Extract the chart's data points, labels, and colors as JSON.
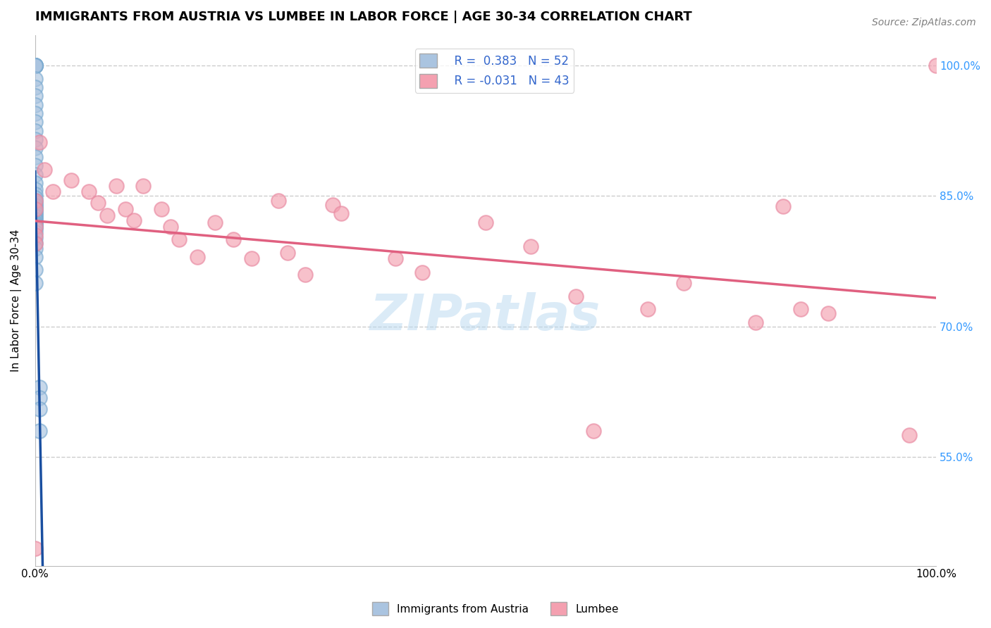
{
  "title": "IMMIGRANTS FROM AUSTRIA VS LUMBEE IN LABOR FORCE | AGE 30-34 CORRELATION CHART",
  "source": "Source: ZipAtlas.com",
  "ylabel": "In Labor Force | Age 30-34",
  "xmin": 0.0,
  "xmax": 1.0,
  "ymin": 0.425,
  "ymax": 1.035,
  "yticks": [
    0.55,
    0.7,
    0.85,
    1.0
  ],
  "ytick_labels": [
    "55.0%",
    "70.0%",
    "85.0%",
    "100.0%"
  ],
  "legend_r1": "R =  0.383",
  "legend_n1": "N = 52",
  "legend_r2": "R = -0.031",
  "legend_n2": "N = 43",
  "austria_color": "#aac4e0",
  "austria_edge_color": "#7aaad0",
  "lumbee_color": "#f4a0b0",
  "lumbee_edge_color": "#e888a0",
  "trendline_austria_color": "#1a4fa0",
  "trendline_lumbee_color": "#e06080",
  "watermark": "ZIPatlas",
  "background_color": "#ffffff",
  "grid_color": "#cccccc",
  "austria_x": [
    0.0,
    0.0,
    0.0,
    0.0,
    0.0,
    0.0,
    0.0,
    0.0,
    0.0,
    0.0,
    0.0,
    0.0,
    0.0,
    0.0,
    0.0,
    0.0,
    0.0,
    0.0,
    0.0,
    0.0,
    0.0,
    0.0,
    0.0,
    0.0,
    0.0,
    0.0,
    0.0,
    0.0,
    0.0,
    0.0,
    0.0,
    0.0,
    0.0,
    0.0,
    0.0,
    0.0,
    0.0,
    0.0,
    0.0,
    0.0,
    0.0,
    0.0,
    0.0,
    0.0,
    0.0,
    0.0,
    0.0,
    0.0,
    0.005,
    0.005,
    0.005,
    0.005
  ],
  "austria_y": [
    1.0,
    1.0,
    1.0,
    1.0,
    1.0,
    1.0,
    1.0,
    1.0,
    0.985,
    0.975,
    0.965,
    0.955,
    0.945,
    0.935,
    0.925,
    0.915,
    0.905,
    0.895,
    0.885,
    0.875,
    0.865,
    0.858,
    0.852,
    0.848,
    0.845,
    0.842,
    0.84,
    0.838,
    0.836,
    0.834,
    0.832,
    0.83,
    0.828,
    0.826,
    0.824,
    0.822,
    0.82,
    0.818,
    0.816,
    0.814,
    0.812,
    0.808,
    0.802,
    0.796,
    0.79,
    0.78,
    0.765,
    0.75,
    0.63,
    0.618,
    0.605,
    0.58
  ],
  "lumbee_x": [
    0.0,
    0.0,
    0.0,
    0.0,
    0.0,
    0.0,
    0.04,
    0.06,
    0.07,
    0.08,
    0.09,
    0.1,
    0.11,
    0.12,
    0.14,
    0.15,
    0.16,
    0.18,
    0.2,
    0.22,
    0.24,
    0.27,
    0.28,
    0.3,
    0.33,
    0.34,
    0.4,
    0.43,
    0.5,
    0.55,
    0.6,
    0.62,
    0.68,
    0.72,
    0.8,
    0.83,
    0.85,
    0.88,
    0.97,
    1.0,
    0.005,
    0.01,
    0.02
  ],
  "lumbee_y": [
    0.845,
    0.835,
    0.815,
    0.805,
    0.795,
    0.445,
    0.868,
    0.855,
    0.842,
    0.828,
    0.862,
    0.835,
    0.822,
    0.862,
    0.835,
    0.815,
    0.8,
    0.78,
    0.82,
    0.8,
    0.778,
    0.845,
    0.785,
    0.76,
    0.84,
    0.83,
    0.778,
    0.762,
    0.82,
    0.792,
    0.735,
    0.58,
    0.72,
    0.75,
    0.705,
    0.838,
    0.72,
    0.715,
    0.575,
    1.0,
    0.912,
    0.88,
    0.855
  ]
}
